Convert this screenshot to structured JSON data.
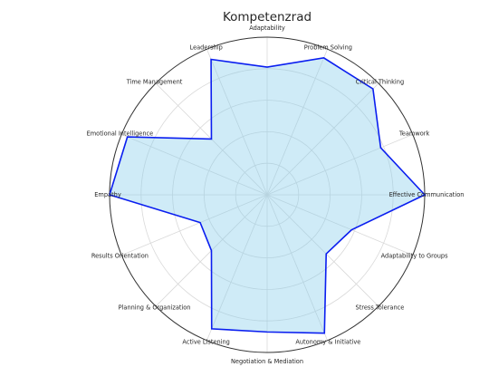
{
  "chart_data": {
    "type": "radar",
    "title": "Kompetenzrad",
    "categories": [
      "Effective Communication",
      "Teamwork",
      "Critical Thinking",
      "Problem Solving",
      "Adaptability",
      "Leadership",
      "Time Management",
      "Emotional Intelligence",
      "Empathy",
      "Results Orientation",
      "Planning & Organization",
      "Active Listening",
      "Negotiation & Mediation",
      "Autonomy & Initiative",
      "Stress Tolerance",
      "Adaptability to Groups"
    ],
    "values": [
      10,
      7.8,
      9.5,
      9.4,
      8.1,
      9.3,
      5.0,
      9.6,
      10,
      4.6,
      5.0,
      9.2,
      8.7,
      9.5,
      5.3,
      5.8
    ],
    "rlim": [
      0,
      10
    ],
    "grid": true,
    "colors": {
      "line": "#0a1ef0",
      "fill": "#87ceeb",
      "grid": "#d9d9d9",
      "outer": "#333333",
      "text": "#262626"
    }
  }
}
